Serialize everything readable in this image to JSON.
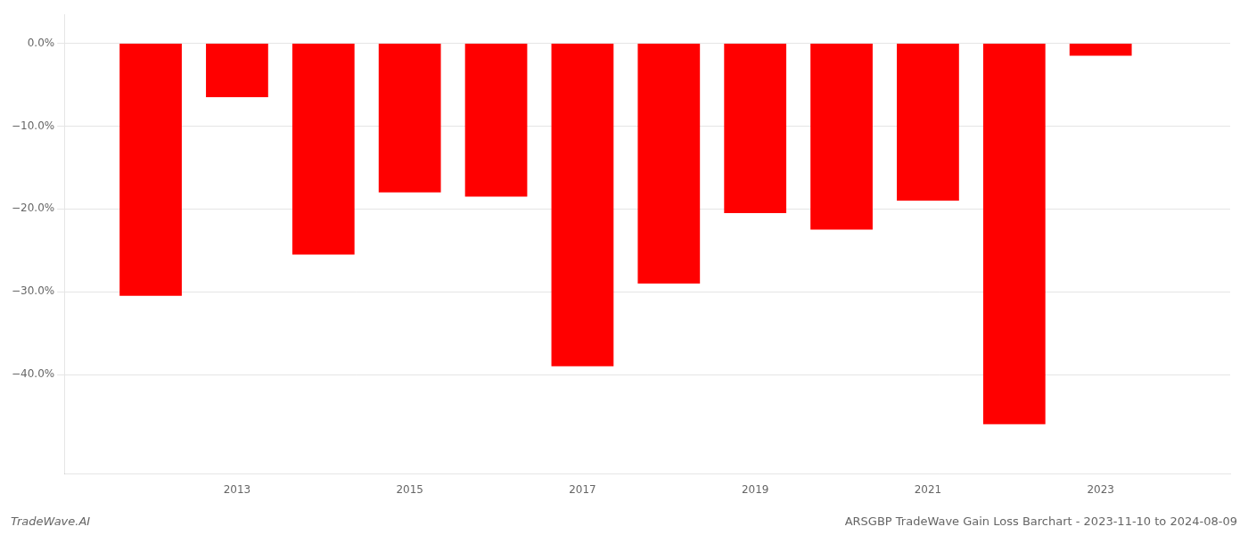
{
  "chart_data": {
    "type": "bar",
    "x": [
      2012,
      2013,
      2014,
      2015,
      2016,
      2017,
      2018,
      2019,
      2020,
      2021,
      2022,
      2023
    ],
    "values": [
      -30.5,
      -6.5,
      -25.5,
      -18.0,
      -18.5,
      -39.0,
      -29.0,
      -20.5,
      -22.5,
      -19.0,
      -46.0,
      -1.5
    ],
    "color": "#ff0000",
    "xlim": [
      2011.0,
      2024.5
    ],
    "xticks": [
      2013,
      2015,
      2017,
      2019,
      2021,
      2023
    ],
    "ylim": [
      -52,
      3.5
    ],
    "yticks": [
      {
        "value": 0.0,
        "label": "0.0%"
      },
      {
        "value": -10.0,
        "label": "−10.0%"
      },
      {
        "value": -20.0,
        "label": "−20.0%"
      },
      {
        "value": -30.0,
        "label": "−30.0%"
      },
      {
        "value": -40.0,
        "label": "−40.0%"
      }
    ],
    "grid": "y",
    "annotations": [
      "TradeWave.AI",
      "ARSGBP TradeWave Gain Loss Barchart - 2023-11-10 to 2024-08-09"
    ]
  }
}
